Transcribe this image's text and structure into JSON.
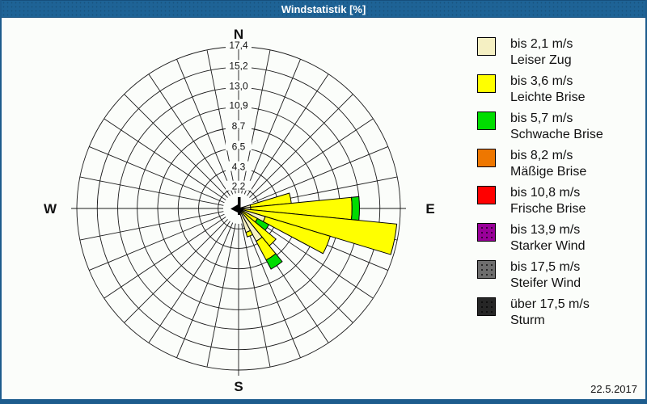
{
  "window": {
    "title": "Windstatistik [%]"
  },
  "footer": {
    "date": "22.5.2017"
  },
  "legend": {
    "items": [
      {
        "speed": "bis 2,1 m/s",
        "name": "Leiser Zug",
        "color": "#F5F0C3",
        "dotted": false
      },
      {
        "speed": "bis 3,6 m/s",
        "name": "Leichte Brise",
        "color": "#FFFF00",
        "dotted": false
      },
      {
        "speed": "bis 5,7 m/s",
        "name": "Schwache Brise",
        "color": "#00DD00",
        "dotted": false
      },
      {
        "speed": "bis 8,2 m/s",
        "name": "Mäßige Brise",
        "color": "#EE7700",
        "dotted": false
      },
      {
        "speed": "bis 10,8 m/s",
        "name": "Frische Brise",
        "color": "#FF0000",
        "dotted": false
      },
      {
        "speed": "bis 13,9 m/s",
        "name": "Starker Wind",
        "color": "#990099",
        "dotted": true
      },
      {
        "speed": "bis 17,5 m/s",
        "name": "Steifer Wind",
        "color": "#6E6E6E",
        "dotted": true
      },
      {
        "speed": "über 17,5 m/s",
        "name": "Sturm",
        "color": "#262626",
        "dotted": true
      }
    ]
  },
  "chart_data": {
    "type": "windrose",
    "title": "Windstatistik [%]",
    "unit": "%",
    "sectors": 32,
    "sector_width_deg": 11.25,
    "grid": {
      "spoke_step_deg": 11.25,
      "hole_radius_frac": 0.095,
      "line_color": "#1a1a1a"
    },
    "rings": {
      "values": [
        2.2,
        4.3,
        6.5,
        8.7,
        10.9,
        13.0,
        15.2,
        17.4
      ],
      "labels": [
        "2,2",
        "4,3",
        "6,5",
        "8,7",
        "10,9",
        "13,0",
        "15,2",
        "17,4"
      ],
      "max": 17.4
    },
    "compass_labels": {
      "n": "N",
      "e": "E",
      "s": "S",
      "w": "W"
    },
    "classes": [
      "bis 2,1 m/s",
      "bis 3,6 m/s",
      "bis 5,7 m/s",
      "bis 8,2 m/s",
      "bis 10,8 m/s",
      "bis 13,9 m/s",
      "bis 17,5 m/s",
      "über 17,5 m/s"
    ],
    "petals": [
      {
        "azimuth_deg": 78.75,
        "dir": "OzN",
        "segments": [
          {
            "class_index": 0,
            "value": 1.3
          },
          {
            "class_index": 1,
            "value": 4.4
          }
        ]
      },
      {
        "azimuth_deg": 90.0,
        "dir": "O",
        "segments": [
          {
            "class_index": 0,
            "value": 1.3
          },
          {
            "class_index": 1,
            "value": 10.9
          },
          {
            "class_index": 2,
            "value": 0.8
          }
        ]
      },
      {
        "azimuth_deg": 101.25,
        "dir": "OzS",
        "segments": [
          {
            "class_index": 1,
            "value": 17.1
          }
        ]
      },
      {
        "azimuth_deg": 112.5,
        "dir": "OSO",
        "segments": [
          {
            "class_index": 0,
            "value": 3.0
          },
          {
            "class_index": 1,
            "value": 7.3
          }
        ]
      },
      {
        "azimuth_deg": 123.75,
        "dir": "SOzO",
        "segments": [
          {
            "class_index": 1,
            "value": 2.3
          },
          {
            "class_index": 2,
            "value": 1.4
          }
        ]
      },
      {
        "azimuth_deg": 135.0,
        "dir": "SO",
        "segments": [
          {
            "class_index": 1,
            "value": 5.2
          }
        ]
      },
      {
        "azimuth_deg": 146.25,
        "dir": "SOzS",
        "segments": [
          {
            "class_index": 0,
            "value": 4.0
          },
          {
            "class_index": 1,
            "value": 2.3
          },
          {
            "class_index": 2,
            "value": 1.1
          }
        ]
      },
      {
        "azimuth_deg": 157.5,
        "dir": "SSO",
        "segments": [
          {
            "class_index": 0,
            "value": 2.7
          },
          {
            "class_index": 1,
            "value": 0.5
          }
        ]
      }
    ]
  }
}
